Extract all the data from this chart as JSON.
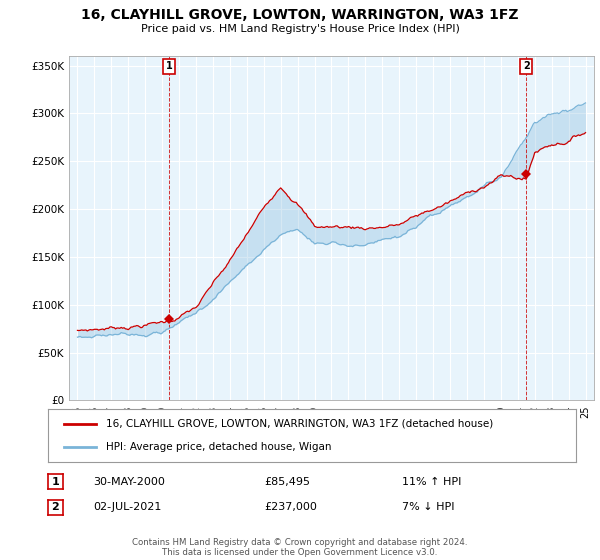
{
  "title": "16, CLAYHILL GROVE, LOWTON, WARRINGTON, WA3 1FZ",
  "subtitle": "Price paid vs. HM Land Registry's House Price Index (HPI)",
  "ylabel_ticks": [
    "£0",
    "£50K",
    "£100K",
    "£150K",
    "£200K",
    "£250K",
    "£300K",
    "£350K"
  ],
  "ytick_values": [
    0,
    50000,
    100000,
    150000,
    200000,
    250000,
    300000,
    350000
  ],
  "ylim": [
    0,
    360000
  ],
  "xlim_start": 1994.5,
  "xlim_end": 2025.5,
  "legend_entry1": "16, CLAYHILL GROVE, LOWTON, WARRINGTON, WA3 1FZ (detached house)",
  "legend_entry2": "HPI: Average price, detached house, Wigan",
  "sale1_label": "1",
  "sale1_date": "30-MAY-2000",
  "sale1_price": "£85,495",
  "sale1_hpi": "11% ↑ HPI",
  "sale1_x": 2000.4,
  "sale1_y": 85495,
  "sale2_label": "2",
  "sale2_date": "02-JUL-2021",
  "sale2_price": "£237,000",
  "sale2_hpi": "7% ↓ HPI",
  "sale2_x": 2021.5,
  "sale2_y": 237000,
  "hpi_color": "#7ab4d8",
  "hpi_fill_color": "#ddeef8",
  "price_color": "#cc0000",
  "marker_box_color": "#cc0000",
  "footer_text": "Contains HM Land Registry data © Crown copyright and database right 2024.\nThis data is licensed under the Open Government Licence v3.0.",
  "background_color": "#ffffff",
  "plot_bg_color": "#e8f4fc",
  "grid_color": "#ffffff"
}
